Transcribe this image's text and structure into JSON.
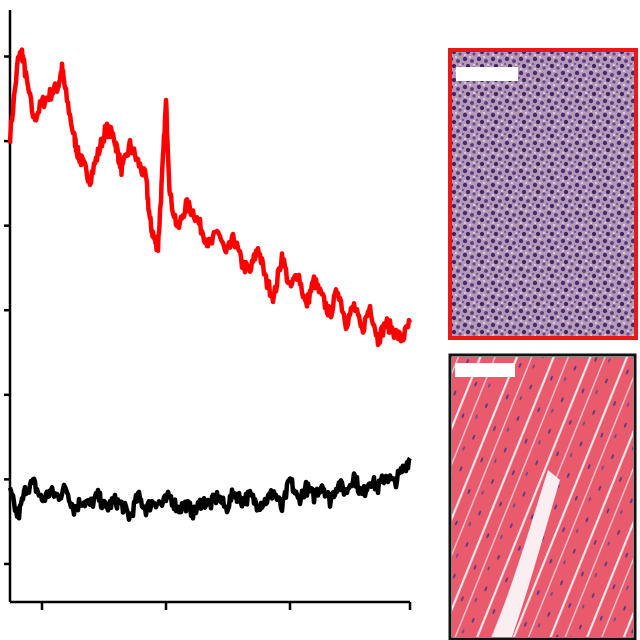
{
  "chart_data": {
    "type": "line",
    "title": "",
    "xlabel": "",
    "ylabel": "",
    "grid": false,
    "legend": "none",
    "xlim": [
      0,
      100
    ],
    "ylim": [
      0,
      7
    ],
    "x_ticks": [
      8,
      39,
      70,
      100
    ],
    "y_ticks": [
      0.45,
      1.45,
      2.45,
      3.45,
      4.45,
      5.45,
      6.45
    ],
    "series": [
      {
        "color": "#ff0000",
        "x": [
          0,
          2,
          3,
          4,
          6,
          8,
          10,
          12,
          13,
          14,
          16,
          17,
          18,
          20,
          22,
          24,
          26,
          27,
          28,
          30,
          32,
          34,
          35,
          36,
          37,
          38,
          39,
          40,
          42,
          44,
          46,
          48,
          50,
          52,
          54,
          56,
          58,
          60,
          62,
          64,
          66,
          68,
          70,
          72,
          74,
          76,
          78,
          80,
          82,
          84,
          86,
          88,
          90,
          92,
          94,
          96,
          98,
          100
        ],
        "values": [
          5.5,
          6.4,
          6.5,
          6.2,
          5.7,
          5.9,
          6.0,
          6.1,
          6.3,
          6.0,
          5.5,
          5.3,
          5.2,
          5.0,
          5.3,
          5.6,
          5.5,
          5.3,
          5.1,
          5.4,
          5.2,
          5.0,
          4.5,
          4.3,
          4.2,
          5.0,
          5.9,
          4.8,
          4.4,
          4.7,
          4.6,
          4.4,
          4.2,
          4.4,
          4.1,
          4.3,
          4.0,
          3.9,
          4.2,
          3.8,
          3.6,
          4.1,
          3.7,
          3.9,
          3.5,
          3.8,
          3.6,
          3.4,
          3.7,
          3.3,
          3.5,
          3.2,
          3.5,
          3.1,
          3.3,
          3.2,
          3.1,
          3.3
        ]
      },
      {
        "color": "#000000",
        "x": [
          0,
          2,
          4,
          6,
          8,
          10,
          12,
          14,
          16,
          18,
          20,
          22,
          24,
          26,
          28,
          30,
          32,
          34,
          36,
          38,
          40,
          42,
          44,
          46,
          48,
          50,
          52,
          54,
          56,
          58,
          60,
          62,
          64,
          66,
          68,
          70,
          72,
          74,
          76,
          78,
          80,
          82,
          84,
          86,
          88,
          90,
          92,
          94,
          96,
          98,
          100
        ],
        "values": [
          1.3,
          1.0,
          1.35,
          1.4,
          1.2,
          1.3,
          1.25,
          1.35,
          1.1,
          1.2,
          1.15,
          1.25,
          1.1,
          1.2,
          1.15,
          1.0,
          1.25,
          1.1,
          1.2,
          1.15,
          1.25,
          1.1,
          1.15,
          1.05,
          1.2,
          1.15,
          1.25,
          1.1,
          1.3,
          1.2,
          1.25,
          1.15,
          1.2,
          1.3,
          1.1,
          1.45,
          1.2,
          1.35,
          1.25,
          1.4,
          1.2,
          1.4,
          1.3,
          1.5,
          1.25,
          1.45,
          1.35,
          1.5,
          1.4,
          1.55,
          1.7
        ]
      }
    ]
  },
  "images": [
    {
      "name": "tumor-histology",
      "frame_color": "#e8191b"
    },
    {
      "name": "muscle-histology",
      "frame_color": "#111111"
    }
  ]
}
